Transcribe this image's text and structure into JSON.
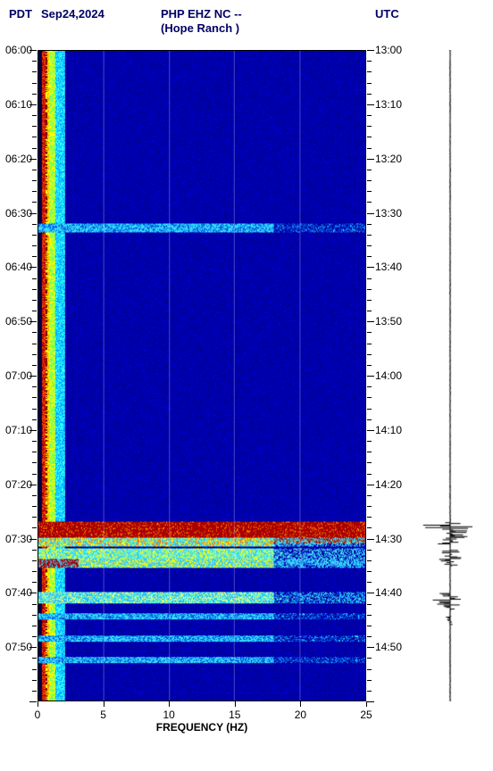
{
  "header": {
    "left_tz": "PDT",
    "date": "Sep24,2024",
    "title_line1": "PHP EHZ NC --",
    "title_line2": "(Hope Ranch )",
    "right_tz": "UTC"
  },
  "spectrogram": {
    "type": "spectrogram",
    "xlim": [
      0,
      25
    ],
    "ylim_minutes": [
      0,
      120
    ],
    "xlabel": "FREQUENCY (HZ)",
    "x_ticks": [
      0,
      5,
      10,
      15,
      20,
      25
    ],
    "y_left_labels": [
      "06:00",
      "06:10",
      "06:20",
      "06:30",
      "06:40",
      "06:50",
      "07:00",
      "07:10",
      "07:20",
      "07:30",
      "07:40",
      "07:50"
    ],
    "y_right_labels": [
      "13:00",
      "13:10",
      "13:20",
      "13:30",
      "13:40",
      "13:50",
      "14:00",
      "14:10",
      "14:20",
      "14:30",
      "14:40",
      "14:50"
    ],
    "y_tick_positions": [
      0,
      10,
      20,
      30,
      40,
      50,
      60,
      70,
      80,
      90,
      100,
      110
    ],
    "background_color": "#0000aa",
    "low_freq_band": {
      "start_hz": 0.3,
      "end_hz": 2.0,
      "colors": [
        "#aa0000",
        "#ff8800",
        "#ffff00",
        "#33ffff"
      ]
    },
    "events": [
      {
        "t_min": 32,
        "thickness": 1.5,
        "amplitude": "low",
        "color_mode": "cyan"
      },
      {
        "t_min": 87,
        "thickness": 4,
        "amplitude": "high",
        "color_mode": "red"
      },
      {
        "t_min": 90,
        "thickness": 1.5,
        "amplitude": "med",
        "color_mode": "mix"
      },
      {
        "t_min": 92,
        "thickness": 3,
        "amplitude": "high",
        "color_mode": "cyan-yellow"
      },
      {
        "t_min": 94,
        "thickness": 1.5,
        "amplitude": "med",
        "color_mode": "red-patch"
      },
      {
        "t_min": 100,
        "thickness": 2,
        "amplitude": "med",
        "color_mode": "yellow-cyan"
      },
      {
        "t_min": 104,
        "thickness": 1,
        "amplitude": "low",
        "color_mode": "cyan"
      },
      {
        "t_min": 108,
        "thickness": 1,
        "amplitude": "low",
        "color_mode": "cyan"
      },
      {
        "t_min": 112,
        "thickness": 1,
        "amplitude": "low",
        "color_mode": "cyan"
      }
    ],
    "gridlines_v_hz": [
      5,
      10,
      15,
      20
    ],
    "tick_fontsize": 12,
    "header_fontsize": 13,
    "header_color": "#000066"
  },
  "waveform": {
    "color": "#000000",
    "baseline_x": 0.5,
    "events_amp": [
      {
        "t_min": 87,
        "amplitude": 1.0,
        "duration": 4
      },
      {
        "t_min": 92,
        "amplitude": 0.5,
        "duration": 3
      },
      {
        "t_min": 100,
        "amplitude": 0.7,
        "duration": 3
      },
      {
        "t_min": 104,
        "amplitude": 0.15,
        "duration": 2
      }
    ],
    "noise_amp": 0.02
  }
}
